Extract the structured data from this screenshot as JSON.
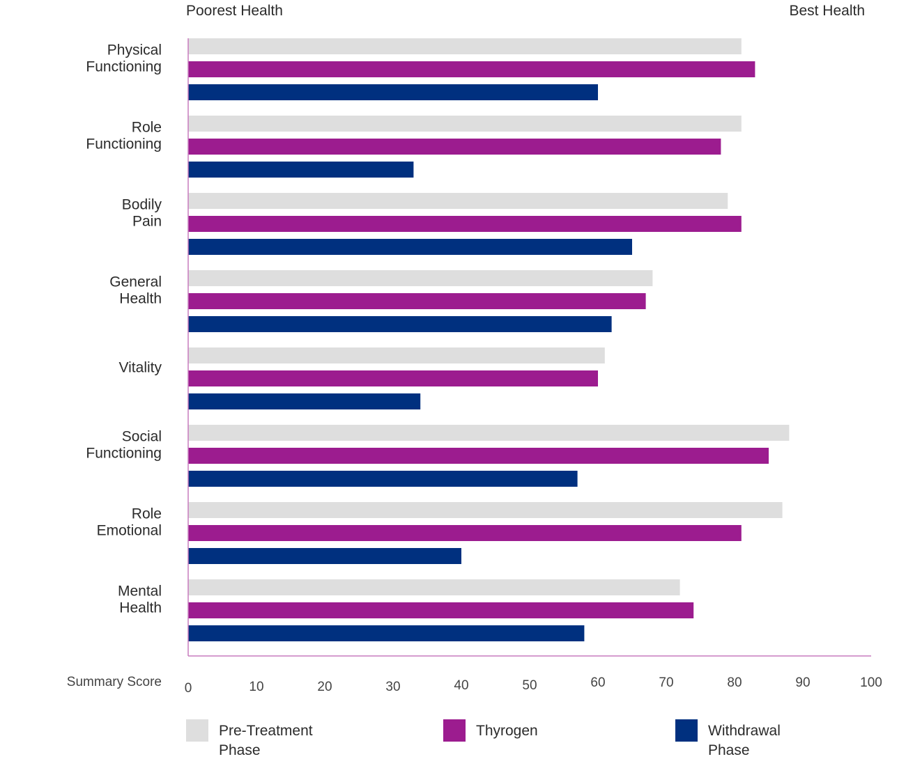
{
  "chart_data": {
    "type": "bar",
    "orientation": "horizontal",
    "title": "",
    "left_label": "Poorest Health",
    "right_label": "Best Health",
    "xlabel": "Summary Score",
    "ylabel": "",
    "xlim": [
      0,
      100
    ],
    "xticks": [
      "0",
      "10",
      "20",
      "30",
      "40",
      "50",
      "60",
      "70",
      "80",
      "90",
      "100"
    ],
    "grid": false,
    "legend_position": "bottom",
    "categories": [
      [
        "Physical",
        "Functioning"
      ],
      [
        "Role",
        "Functioning"
      ],
      [
        "Bodily",
        "Pain"
      ],
      [
        "General",
        "Health"
      ],
      [
        "Vitality"
      ],
      [
        "Social",
        "Functioning"
      ],
      [
        "Role",
        "Emotional"
      ],
      [
        "Mental",
        "Health"
      ]
    ],
    "series": [
      {
        "name": [
          "Pre-Treatment",
          "Phase"
        ],
        "color": "#dedede",
        "values": [
          81,
          81,
          79,
          68,
          61,
          88,
          87,
          72
        ]
      },
      {
        "name": [
          "Thyrogen"
        ],
        "color": "#9c1c8f",
        "values": [
          83,
          78,
          81,
          67,
          60,
          85,
          81,
          74
        ]
      },
      {
        "name": [
          "Withdrawal",
          "Phase"
        ],
        "color": "#00307f",
        "values": [
          60,
          33,
          65,
          62,
          34,
          57,
          40,
          58
        ]
      }
    ],
    "axis_color": "#c77bbd"
  }
}
